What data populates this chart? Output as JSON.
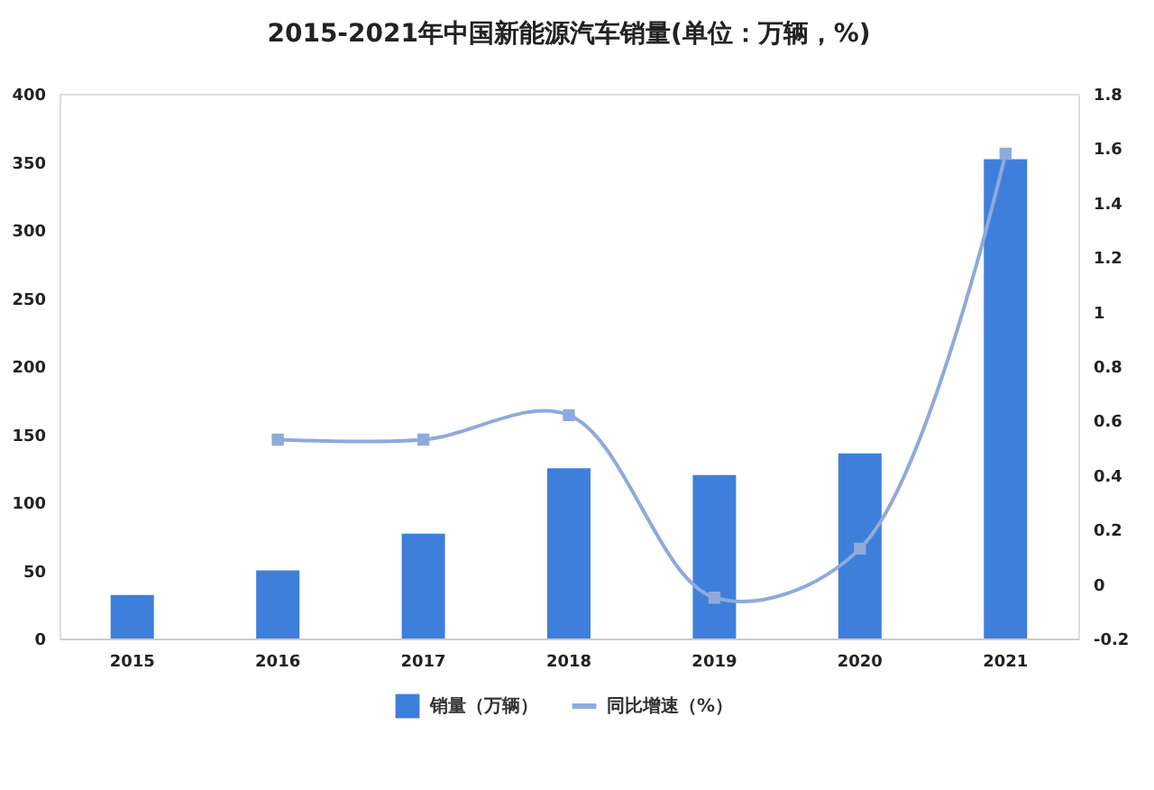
{
  "chart_data": {
    "type": "bar",
    "title": "2015-2021年中国新能源汽车销量(单位：万辆，%)",
    "categories": [
      "2015",
      "2016",
      "2017",
      "2018",
      "2019",
      "2020",
      "2021"
    ],
    "series": [
      {
        "name": "销量（万辆）",
        "color": "#3e7fdb",
        "values": [
          32,
          50,
          77,
          125,
          120,
          136,
          352
        ]
      },
      {
        "name": "同比增速（%）",
        "type": "line",
        "axis": "y2",
        "color": "#8eaadb",
        "values": [
          null,
          0.53,
          0.53,
          0.62,
          -0.05,
          0.13,
          1.58
        ]
      }
    ],
    "ylim": [
      0,
      400
    ],
    "yticks": [
      0,
      50,
      100,
      150,
      200,
      250,
      300,
      350,
      400
    ],
    "y2lim": [
      -0.2,
      1.8
    ],
    "y2ticks": [
      -0.2,
      0,
      0.2,
      0.4,
      0.6,
      0.8,
      1,
      1.2,
      1.4,
      1.6,
      1.8
    ],
    "legend": "bottom",
    "grid": false,
    "marker": "square",
    "line_style": "solid"
  }
}
